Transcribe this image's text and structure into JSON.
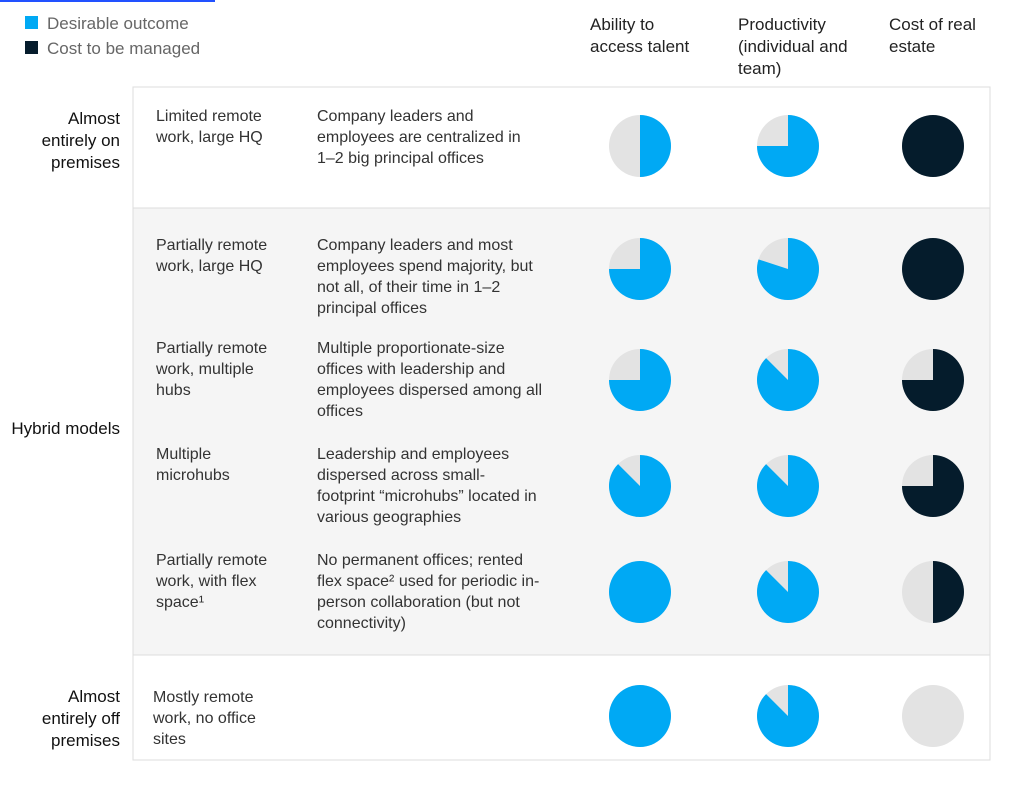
{
  "legend": [
    {
      "label": "Desirable outcome",
      "color": "#00a9f4"
    },
    {
      "label": "Cost to be managed",
      "color": "#051c2c"
    }
  ],
  "columns": [
    {
      "label": "Ability to access talent",
      "color": "#00a9f4"
    },
    {
      "label": "Productivity (individual and team)",
      "color": "#00a9f4"
    },
    {
      "label": "Cost of real estate",
      "color": "#051c2c"
    }
  ],
  "groups": [
    {
      "label": "Almost entirely on premises",
      "rows": [
        {
          "model": "Limited remote work, large HQ",
          "description": "Company leaders and employees are centralized in 1–2 big principal offices",
          "values": [
            0.5,
            0.75,
            1
          ]
        }
      ]
    },
    {
      "label": "Hybrid models",
      "rows": [
        {
          "model": "Partially remote work, large HQ",
          "description": "Company leaders and most employees spend majority, but not all, of their time in 1–2 principal offices",
          "values": [
            0.75,
            0.8,
            1
          ]
        },
        {
          "model": "Partially remote work, multiple hubs",
          "description": "Multiple proportionate-size offices with leadership and employees dispersed among all offices",
          "values": [
            0.75,
            0.875,
            0.75
          ]
        },
        {
          "model": "Multiple microhubs",
          "description": "Leadership and employees dispersed across small-footprint “microhubs” located in various geographies",
          "values": [
            0.875,
            0.875,
            0.75
          ]
        },
        {
          "model": "Partially remote work, with flex space¹",
          "description": "No permanent offices; rented flex space² used for periodic in-person collaboration (but not connectivity)",
          "values": [
            1,
            0.875,
            0.5
          ]
        }
      ]
    },
    {
      "label": "Almost entirely off premises",
      "rows": [
        {
          "model": "Mostly remote work, no office sites",
          "description": "",
          "values": [
            1,
            0.875,
            0
          ]
        }
      ]
    }
  ]
}
